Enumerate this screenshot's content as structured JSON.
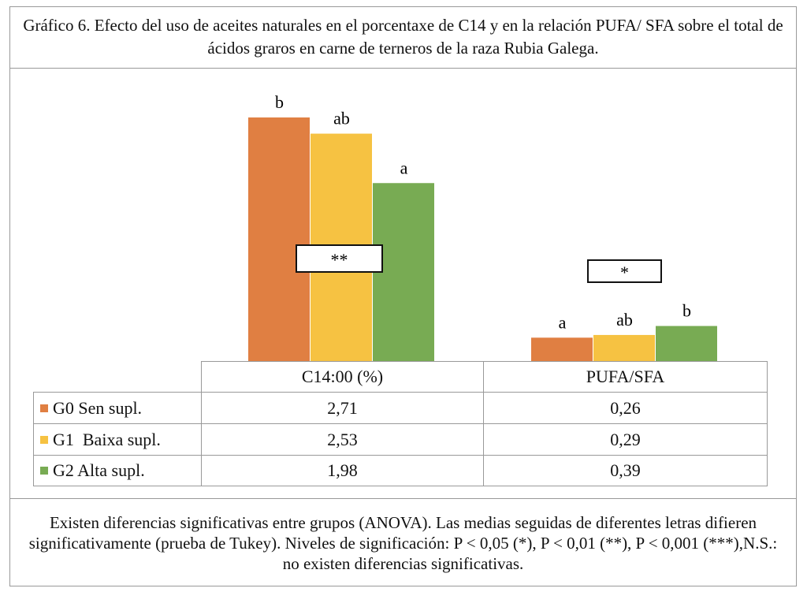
{
  "title": "Gráfico 6. Efecto del uso de aceites naturales en el porcentaxe de C14 y en la relación PUFA/ SFA sobre el total de ácidos graros en carne de terneros de la raza Rubia Galega.",
  "footnote": "Existen diferencias significativas entre grupos (ANOVA). Las medias seguidas de diferentes letras difieren significativamente (prueba de Tukey). Niveles de significación: P < 0,05 (*), P < 0,01 (**), P < 0,001 (***),N.S.: no existen diferencias significativas.",
  "chart_data": {
    "type": "bar",
    "categories": [
      "C14:00 (%)",
      "PUFA/SFA"
    ],
    "series": [
      {
        "name": "G0 Sen supl.",
        "color": "#E07F42",
        "values": [
          2.71,
          0.26
        ],
        "value_labels": [
          "2,71",
          "0,26"
        ],
        "letters": [
          "b",
          "a"
        ]
      },
      {
        "name": "G1  Baixa supl.",
        "color": "#F6C242",
        "values": [
          2.53,
          0.29
        ],
        "value_labels": [
          "2,53",
          "0,29"
        ],
        "letters": [
          "ab",
          "ab"
        ]
      },
      {
        "name": "G2 Alta supl.",
        "color": "#78AB53",
        "values": [
          1.98,
          0.39
        ],
        "value_labels": [
          "1,98",
          "0,39"
        ],
        "letters": [
          "a",
          "b"
        ]
      }
    ],
    "significance": [
      "**",
      "*"
    ],
    "ylim": [
      0,
      3.14
    ],
    "grid": false,
    "legend": "data-table-bottom"
  }
}
